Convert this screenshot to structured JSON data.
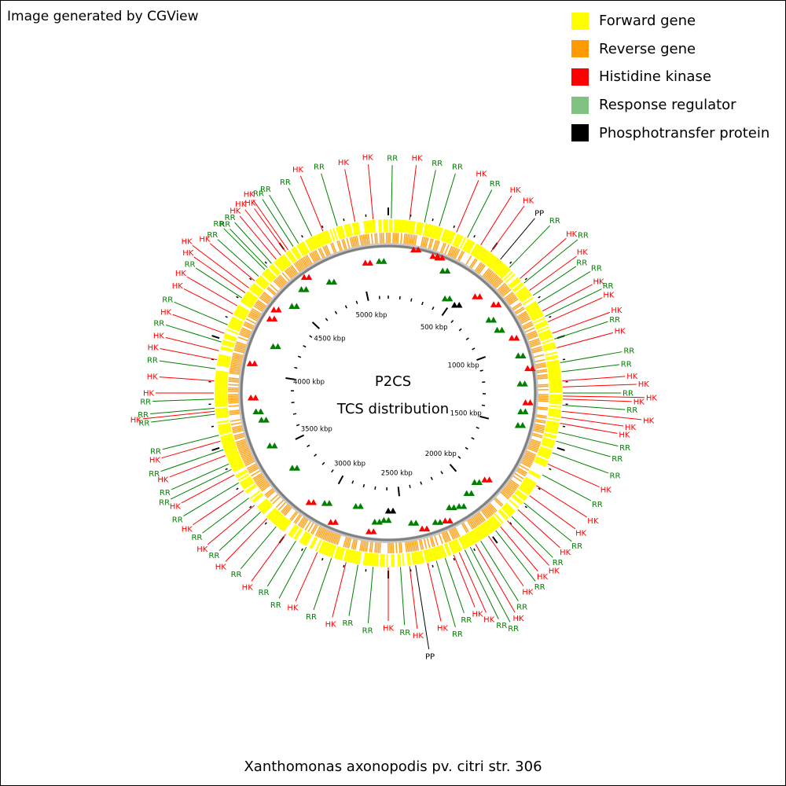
{
  "credit": "Image generated by CGView",
  "title": "P2CS",
  "subtitle": "TCS distribution",
  "organism": "Xanthomonas axonopodis pv. citri str. 306",
  "legend": [
    {
      "label": "Forward gene",
      "color": "#ffff00"
    },
    {
      "label": "Reverse gene",
      "color": "#ff9900"
    },
    {
      "label": "Histidine kinase",
      "color": "#ff0000"
    },
    {
      "label": "Response regulator",
      "color": "#80c080"
    },
    {
      "label": "Phosphotransfer protein",
      "color": "#000000"
    }
  ],
  "colors": {
    "HK": "#ff0000",
    "RR": "#008000",
    "PP": "#000000",
    "forward": "#ffff00",
    "reverse": "#ff9900",
    "backbone": "#808080"
  },
  "genome_kbp": 5175,
  "scale_labels": [
    "500 kbp",
    "1000 kbp",
    "1500 kbp",
    "2000 kbp",
    "2500 kbp",
    "3000 kbp",
    "3500 kbp",
    "4000 kbp",
    "4500 kbp",
    "5000 kbp"
  ],
  "tcs_genes": [
    {
      "type": "RR",
      "angle": -45,
      "lr": 296
    },
    {
      "type": "RR",
      "angle": -42,
      "lr": 292
    },
    {
      "type": "HK",
      "angle": -38,
      "lr": 296
    },
    {
      "type": "HK",
      "angle": -35,
      "lr": 300
    },
    {
      "type": "RR",
      "angle": -31,
      "lr": 294
    },
    {
      "type": "RR",
      "angle": -26,
      "lr": 290
    },
    {
      "type": "HK",
      "angle": -22,
      "lr": 298
    },
    {
      "type": "RR",
      "angle": -17,
      "lr": 292
    },
    {
      "type": "HK",
      "angle": -11,
      "lr": 290
    },
    {
      "type": "HK",
      "angle": -5,
      "lr": 292
    },
    {
      "type": "RR",
      "angle": 1,
      "lr": 290
    },
    {
      "type": "HK",
      "angle": 7,
      "lr": 292
    },
    {
      "type": "RR",
      "angle": 12,
      "lr": 290
    },
    {
      "type": "RR",
      "angle": 17,
      "lr": 292
    },
    {
      "type": "HK",
      "angle": 23,
      "lr": 294
    },
    {
      "type": "RR",
      "angle": 27,
      "lr": 290
    },
    {
      "type": "HK",
      "angle": 32,
      "lr": 296
    },
    {
      "type": "HK",
      "angle": 36,
      "lr": 294
    },
    {
      "type": "PP",
      "angle": 40,
      "lr": 290
    },
    {
      "type": "RR",
      "angle": 44,
      "lr": 296
    },
    {
      "type": "HK",
      "angle": 49,
      "lr": 300
    },
    {
      "type": "RR",
      "angle": 51,
      "lr": 310
    },
    {
      "type": "HK",
      "angle": 54,
      "lr": 296
    },
    {
      "type": "RR",
      "angle": 56,
      "lr": 288
    },
    {
      "type": "RR",
      "angle": 59,
      "lr": 300
    },
    {
      "type": "HK",
      "angle": 62,
      "lr": 294
    },
    {
      "type": "RR",
      "angle": 64,
      "lr": 302
    },
    {
      "type": "HK",
      "angle": 66,
      "lr": 298
    },
    {
      "type": "HK",
      "angle": 70,
      "lr": 300
    },
    {
      "type": "RR",
      "angle": 72,
      "lr": 294
    },
    {
      "type": "HK",
      "angle": 75,
      "lr": 296
    },
    {
      "type": "RR",
      "angle": 80,
      "lr": 302
    },
    {
      "type": "RR",
      "angle": 83,
      "lr": 296
    },
    {
      "type": "HK",
      "angle": 86,
      "lr": 302
    },
    {
      "type": "HK",
      "angle": 88,
      "lr": 316
    },
    {
      "type": "RR",
      "angle": 90,
      "lr": 296
    },
    {
      "type": "HK",
      "angle": 91,
      "lr": 326
    },
    {
      "type": "HK",
      "angle": 92,
      "lr": 310
    },
    {
      "type": "RR",
      "angle": 94,
      "lr": 302
    },
    {
      "type": "HK",
      "angle": 96,
      "lr": 324
    },
    {
      "type": "HK",
      "angle": 98,
      "lr": 302
    },
    {
      "type": "HK",
      "angle": 100,
      "lr": 296
    },
    {
      "type": "RR",
      "angle": 103,
      "lr": 300
    },
    {
      "type": "RR",
      "angle": 106,
      "lr": 294
    },
    {
      "type": "RR",
      "angle": 110,
      "lr": 298
    },
    {
      "type": "HK",
      "angle": 114,
      "lr": 294
    },
    {
      "type": "RR",
      "angle": 118,
      "lr": 292
    },
    {
      "type": "HK",
      "angle": 122,
      "lr": 298
    },
    {
      "type": "HK",
      "angle": 126,
      "lr": 294
    },
    {
      "type": "RR",
      "angle": 129,
      "lr": 300
    },
    {
      "type": "HK",
      "angle": 132,
      "lr": 294
    },
    {
      "type": "RR",
      "angle": 135,
      "lr": 296
    },
    {
      "type": "HK",
      "angle": 137,
      "lr": 300
    },
    {
      "type": "HK",
      "angle": 140,
      "lr": 296
    },
    {
      "type": "RR",
      "angle": 142,
      "lr": 304
    },
    {
      "type": "HK",
      "angle": 145,
      "lr": 300
    },
    {
      "type": "RR",
      "angle": 148,
      "lr": 312
    },
    {
      "type": "HK",
      "angle": 150,
      "lr": 322
    },
    {
      "type": "RR",
      "angle": 152,
      "lr": 334
    },
    {
      "type": "RR",
      "angle": 154,
      "lr": 320
    },
    {
      "type": "HK",
      "angle": 156,
      "lr": 306
    },
    {
      "type": "HK",
      "angle": 158,
      "lr": 294
    },
    {
      "type": "RR",
      "angle": 161,
      "lr": 296
    },
    {
      "type": "RR",
      "angle": 164,
      "lr": 310
    },
    {
      "type": "HK",
      "angle": 167,
      "lr": 298
    },
    {
      "type": "PP",
      "angle": 171,
      "lr": 348
    },
    {
      "type": "HK",
      "angle": 173,
      "lr": 302
    },
    {
      "type": "RR",
      "angle": 176,
      "lr": 296
    },
    {
      "type": "HK",
      "angle": 180,
      "lr": 290
    },
    {
      "type": "RR",
      "angle": 185,
      "lr": 294
    },
    {
      "type": "RR",
      "angle": 190,
      "lr": 288
    },
    {
      "type": "HK",
      "angle": 194,
      "lr": 294
    },
    {
      "type": "RR",
      "angle": 199,
      "lr": 292
    },
    {
      "type": "HK",
      "angle": 204,
      "lr": 290
    },
    {
      "type": "RR",
      "angle": 208,
      "lr": 296
    },
    {
      "type": "RR",
      "angle": 212,
      "lr": 290
    },
    {
      "type": "HK",
      "angle": 216,
      "lr": 296
    },
    {
      "type": "RR",
      "angle": 220,
      "lr": 292
    },
    {
      "type": "HK",
      "angle": 224,
      "lr": 298
    },
    {
      "type": "RR",
      "angle": 227,
      "lr": 294
    },
    {
      "type": "HK",
      "angle": 230,
      "lr": 300
    },
    {
      "type": "RR",
      "angle": 233,
      "lr": 296
    },
    {
      "type": "HK",
      "angle": 236,
      "lr": 300
    },
    {
      "type": "RR",
      "angle": 239,
      "lr": 304
    },
    {
      "type": "HK",
      "angle": 242,
      "lr": 298
    },
    {
      "type": "RR",
      "angle": 244,
      "lr": 308
    },
    {
      "type": "RR",
      "angle": 246,
      "lr": 302
    },
    {
      "type": "HK",
      "angle": 249,
      "lr": 298
    },
    {
      "type": "RR",
      "angle": 251,
      "lr": 306
    },
    {
      "type": "HK",
      "angle": 254,
      "lr": 300
    },
    {
      "type": "RR",
      "angle": 256,
      "lr": 296
    },
    {
      "type": "RR",
      "angle": 263,
      "lr": 304
    },
    {
      "type": "HK",
      "angle": 264,
      "lr": 314
    },
    {
      "type": "RR",
      "angle": 265,
      "lr": 304
    },
    {
      "type": "RR",
      "angle": 268,
      "lr": 300
    },
    {
      "type": "HK",
      "angle": 270,
      "lr": 296
    },
    {
      "type": "HK",
      "angle": 274,
      "lr": 292
    },
    {
      "type": "RR",
      "angle": 278,
      "lr": 294
    },
    {
      "type": "HK",
      "angle": 281,
      "lr": 296
    },
    {
      "type": "HK",
      "angle": 284,
      "lr": 292
    },
    {
      "type": "RR",
      "angle": 287,
      "lr": 296
    },
    {
      "type": "HK",
      "angle": 290,
      "lr": 292
    },
    {
      "type": "RR",
      "angle": 293,
      "lr": 296
    },
    {
      "type": "HK",
      "angle": 297,
      "lr": 292
    },
    {
      "type": "HK",
      "angle": 300,
      "lr": 296
    },
    {
      "type": "RR",
      "angle": 303,
      "lr": 292
    },
    {
      "type": "HK",
      "angle": 305,
      "lr": 302
    },
    {
      "type": "HK",
      "angle": 307,
      "lr": 312
    },
    {
      "type": "HK",
      "angle": 310,
      "lr": 296
    },
    {
      "type": "RR",
      "angle": 312,
      "lr": 292
    },
    {
      "type": "RR",
      "angle": 316,
      "lr": 290
    },
    {
      "type": "HK",
      "angle": 320,
      "lr": 294
    },
    {
      "type": "HK",
      "angle": 324,
      "lr": 290
    },
    {
      "type": "RR",
      "angle": 327,
      "lr": 294
    }
  ],
  "inner_marks": [
    {
      "type": "HK",
      "angle": 10,
      "r": 185
    },
    {
      "type": "HK",
      "angle": 18,
      "r": 183
    },
    {
      "type": "HK",
      "angle": 20,
      "r": 183
    },
    {
      "type": "RR",
      "angle": 24,
      "r": 170
    },
    {
      "type": "RR",
      "angle": 31,
      "r": 140
    },
    {
      "type": "PP",
      "angle": 37,
      "r": 140
    },
    {
      "type": "HK",
      "angle": 42,
      "r": 165
    },
    {
      "type": "HK",
      "angle": 50,
      "r": 175
    },
    {
      "type": "RR",
      "angle": 54,
      "r": 158
    },
    {
      "type": "RR",
      "angle": 60,
      "r": 160
    },
    {
      "type": "HK",
      "angle": 66,
      "r": 172
    },
    {
      "type": "RR",
      "angle": 74,
      "r": 172
    },
    {
      "type": "HK",
      "angle": 80,
      "r": 180
    },
    {
      "type": "RR",
      "angle": 86,
      "r": 168
    },
    {
      "type": "HK",
      "angle": 94,
      "r": 175
    },
    {
      "type": "RR",
      "angle": 98,
      "r": 170
    },
    {
      "type": "RR",
      "angle": 104,
      "r": 170
    },
    {
      "type": "HK",
      "angle": 132,
      "r": 165
    },
    {
      "type": "RR",
      "angle": 136,
      "r": 158
    },
    {
      "type": "RR",
      "angle": 142,
      "r": 162
    },
    {
      "type": "RR",
      "angle": 148,
      "r": 170
    },
    {
      "type": "RR",
      "angle": 152,
      "r": 165
    },
    {
      "type": "HK",
      "angle": 156,
      "r": 178
    },
    {
      "type": "RR",
      "angle": 160,
      "r": 175
    },
    {
      "type": "HK",
      "angle": 166,
      "r": 178
    },
    {
      "type": "RR",
      "angle": 170,
      "r": 168
    },
    {
      "type": "PP",
      "angle": 180,
      "r": 150
    },
    {
      "type": "RR",
      "angle": 182,
      "r": 162
    },
    {
      "type": "RR",
      "angle": 186,
      "r": 165
    },
    {
      "type": "HK",
      "angle": 188,
      "r": 178
    },
    {
      "type": "RR",
      "angle": 196,
      "r": 150
    },
    {
      "type": "HK",
      "angle": 204,
      "r": 180
    },
    {
      "type": "RR",
      "angle": 210,
      "r": 162
    },
    {
      "type": "HK",
      "angle": 216,
      "r": 172
    },
    {
      "type": "RR",
      "angle": 232,
      "r": 155
    },
    {
      "type": "RR",
      "angle": 246,
      "r": 165
    },
    {
      "type": "RR",
      "angle": 258,
      "r": 165
    },
    {
      "type": "RR",
      "angle": 262,
      "r": 170
    },
    {
      "type": "HK",
      "angle": 268,
      "r": 175
    },
    {
      "type": "HK",
      "angle": 282,
      "r": 180
    },
    {
      "type": "RR",
      "angle": 292,
      "r": 158
    },
    {
      "type": "HK",
      "angle": 302,
      "r": 178
    },
    {
      "type": "HK",
      "angle": 306,
      "r": 180
    },
    {
      "type": "RR",
      "angle": 312,
      "r": 165
    },
    {
      "type": "RR",
      "angle": 320,
      "r": 172
    },
    {
      "type": "HK",
      "angle": 324,
      "r": 182
    },
    {
      "type": "RR",
      "angle": 332,
      "r": 160
    },
    {
      "type": "HK",
      "angle": 350,
      "r": 168
    },
    {
      "type": "RR",
      "angle": 356,
      "r": 168
    }
  ]
}
